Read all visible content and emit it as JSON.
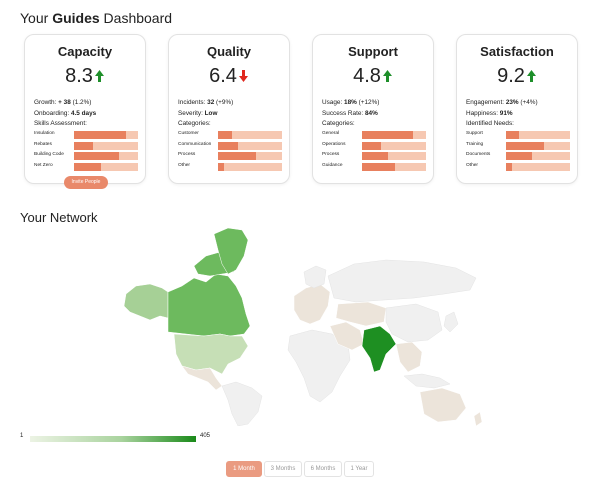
{
  "header": {
    "prefix": "Your",
    "bold": "Guides",
    "suffix": "Dashboard"
  },
  "cards": [
    {
      "title": "Capacity",
      "value": "8.3",
      "trend": "up",
      "stats": [
        {
          "label": "Growth:",
          "value": "+ 38",
          "extra": "(1.2%)"
        },
        {
          "label": "Onboarding:",
          "value": "4.5 days",
          "extra": ""
        },
        {
          "label": "Skills Assessment:",
          "value": "",
          "extra": ""
        }
      ],
      "bars": [
        {
          "label": "Insulation",
          "value": 0.82
        },
        {
          "label": "Rebates",
          "value": 0.3
        },
        {
          "label": "Building Code",
          "value": 0.7
        },
        {
          "label": "Net Zero",
          "value": 0.42
        }
      ],
      "button": "Invite People"
    },
    {
      "title": "Quality",
      "value": "6.4",
      "trend": "down",
      "stats": [
        {
          "label": "Incidents:",
          "value": "32",
          "extra": "(+9%)"
        },
        {
          "label": "Severity:",
          "value": "Low",
          "extra": ""
        },
        {
          "label": "Categories:",
          "value": "",
          "extra": ""
        }
      ],
      "bars": [
        {
          "label": "Customer",
          "value": 0.22
        },
        {
          "label": "Communication",
          "value": 0.32
        },
        {
          "label": "Process",
          "value": 0.6
        },
        {
          "label": "Other",
          "value": 0.1
        }
      ],
      "button": ""
    },
    {
      "title": "Support",
      "value": "4.8",
      "trend": "up",
      "stats": [
        {
          "label": "Usage:",
          "value": "18%",
          "extra": "(+12%)"
        },
        {
          "label": "Success Rate:",
          "value": "84%",
          "extra": ""
        },
        {
          "label": "Categories:",
          "value": "",
          "extra": ""
        }
      ],
      "bars": [
        {
          "label": "General",
          "value": 0.8
        },
        {
          "label": "Operations",
          "value": 0.3
        },
        {
          "label": "Process",
          "value": 0.4
        },
        {
          "label": "Guidance",
          "value": 0.52
        }
      ],
      "button": ""
    },
    {
      "title": "Satisfaction",
      "value": "9.2",
      "trend": "up",
      "stats": [
        {
          "label": "Engagement:",
          "value": "23%",
          "extra": "(+4%)"
        },
        {
          "label": "Happiness:",
          "value": "91%",
          "extra": ""
        },
        {
          "label": "Identified Needs:",
          "value": "",
          "extra": ""
        }
      ],
      "bars": [
        {
          "label": "Support",
          "value": 0.2
        },
        {
          "label": "Training",
          "value": 0.6
        },
        {
          "label": "Documents",
          "value": 0.4
        },
        {
          "label": "Other",
          "value": 0.1
        }
      ],
      "button": ""
    }
  ],
  "network": {
    "title": "Your Network",
    "legend_min": "1",
    "legend_max": "405"
  },
  "ranges": [
    {
      "label": "1 Month",
      "active": true
    },
    {
      "label": "3 Months",
      "active": false
    },
    {
      "label": "6 Months",
      "active": false
    },
    {
      "label": "1 Year",
      "active": false
    }
  ],
  "colors": {
    "accent": "#e8805e",
    "accent_light": "#f6c8b2",
    "up": "#1e8f2a",
    "down": "#e0281e",
    "map_high": "#1a8a1a",
    "map_mid": "#7fc16b",
    "map_low": "#c9e2b8",
    "map_neutral": "#ece4da",
    "map_none": "#f0f0f0"
  }
}
